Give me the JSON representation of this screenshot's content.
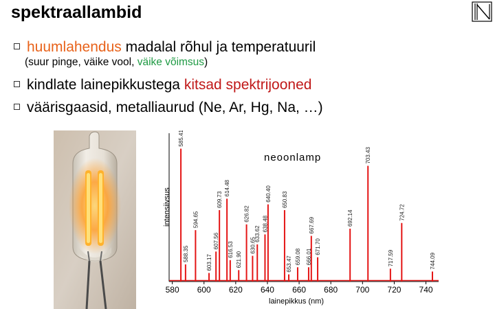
{
  "slide": {
    "title": "spektraallambid",
    "bullet1": {
      "highlight": "huumlahendus",
      "rest": " madalal rõhul ja temperatuuril"
    },
    "sub": {
      "prefix": "(suur pinge, väike vool, ",
      "highlight": "väike võimsus",
      "suffix": ")"
    },
    "bullet2": {
      "prefix": "kindlate lainepikkustega ",
      "highlight": "kitsad spektrijooned"
    },
    "bullet3": {
      "text": "väärisgaasid, metalliaurud (Ne, Ar, Hg, Na, …)"
    },
    "colors": {
      "orange_highlight": "#e8621a",
      "red_highlight": "#c01818",
      "green_highlight": "#1f9a44",
      "spectrum_line": "#e41414"
    },
    "icons": {
      "nav": "end-of-show-icon",
      "bullet": "hollow-square-bullet-icon"
    }
  },
  "chart_data": {
    "type": "line",
    "title": "neoonlamp",
    "xlabel": "lainepikkus (nm)",
    "ylabel": "intensiivsus",
    "xlim": [
      578,
      748
    ],
    "xticks": [
      580,
      600,
      620,
      640,
      660,
      680,
      700,
      720,
      740
    ],
    "grid": false,
    "series": [
      {
        "peaks": [
          {
            "wl": 585.41,
            "h": 0.93
          },
          {
            "wl": 588.35,
            "h": 0.12
          },
          {
            "wl": 594.65,
            "h": 0.36
          },
          {
            "wl": 603.17,
            "h": 0.06
          },
          {
            "wl": 607.56,
            "h": 0.21
          },
          {
            "wl": 609.73,
            "h": 0.5
          },
          {
            "wl": 614.48,
            "h": 0.58
          },
          {
            "wl": 616.53,
            "h": 0.15
          },
          {
            "wl": 621.9,
            "h": 0.08
          },
          {
            "wl": 626.82,
            "h": 0.4
          },
          {
            "wl": 630.65,
            "h": 0.18
          },
          {
            "wl": 633.62,
            "h": 0.26
          },
          {
            "wl": 638.48,
            "h": 0.33
          },
          {
            "wl": 640.4,
            "h": 0.54
          },
          {
            "wl": 650.83,
            "h": 0.5
          },
          {
            "wl": 653.47,
            "h": 0.05
          },
          {
            "wl": 659.08,
            "h": 0.1
          },
          {
            "wl": 666.01,
            "h": 0.1
          },
          {
            "wl": 667.69,
            "h": 0.32
          },
          {
            "wl": 671.7,
            "h": 0.17
          },
          {
            "wl": 692.14,
            "h": 0.37
          },
          {
            "wl": 703.43,
            "h": 0.81
          },
          {
            "wl": 717.59,
            "h": 0.09
          },
          {
            "wl": 724.72,
            "h": 0.41
          },
          {
            "wl": 744.09,
            "h": 0.07
          }
        ]
      }
    ],
    "peak_labels": [
      "585.41",
      "588.35",
      "594.65",
      "603.17",
      "607.56",
      "609.73",
      "614.48",
      "616.53",
      "621.90",
      "626.82",
      "630.65",
      "633.62",
      "638.48",
      "640.40",
      "650.83",
      "653.47",
      "659.08",
      "666.01",
      "667.69",
      "671.70",
      "692.14",
      "703.43",
      "717.59",
      "724.72",
      "744.09"
    ]
  }
}
